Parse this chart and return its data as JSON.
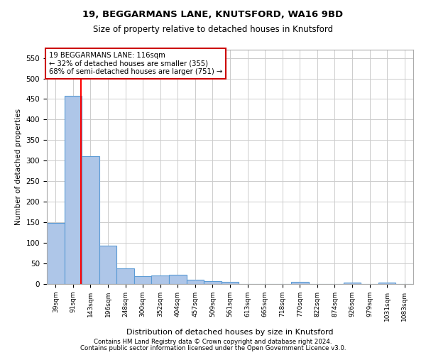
{
  "title": "19, BEGGARMANS LANE, KNUTSFORD, WA16 9BD",
  "subtitle": "Size of property relative to detached houses in Knutsford",
  "xlabel": "Distribution of detached houses by size in Knutsford",
  "ylabel": "Number of detached properties",
  "bin_labels": [
    "39sqm",
    "91sqm",
    "143sqm",
    "196sqm",
    "248sqm",
    "300sqm",
    "352sqm",
    "404sqm",
    "457sqm",
    "509sqm",
    "561sqm",
    "613sqm",
    "665sqm",
    "718sqm",
    "770sqm",
    "822sqm",
    "874sqm",
    "926sqm",
    "979sqm",
    "1031sqm",
    "1083sqm"
  ],
  "bar_values": [
    148,
    457,
    311,
    93,
    38,
    19,
    20,
    22,
    11,
    7,
    6,
    0,
    0,
    0,
    5,
    0,
    0,
    4,
    0,
    3,
    0
  ],
  "bar_color": "#aec6e8",
  "bar_edge_color": "#5b9bd5",
  "ylim": [
    0,
    570
  ],
  "yticks": [
    0,
    50,
    100,
    150,
    200,
    250,
    300,
    350,
    400,
    450,
    500,
    550
  ],
  "red_line_x": 1.46,
  "annotation_text": "19 BEGGARMANS LANE: 116sqm\n← 32% of detached houses are smaller (355)\n68% of semi-detached houses are larger (751) →",
  "annotation_box_color": "#ffffff",
  "annotation_box_edge_color": "#cc0000",
  "footnote1": "Contains HM Land Registry data © Crown copyright and database right 2024.",
  "footnote2": "Contains public sector information licensed under the Open Government Licence v3.0.",
  "background_color": "#ffffff",
  "grid_color": "#cccccc"
}
